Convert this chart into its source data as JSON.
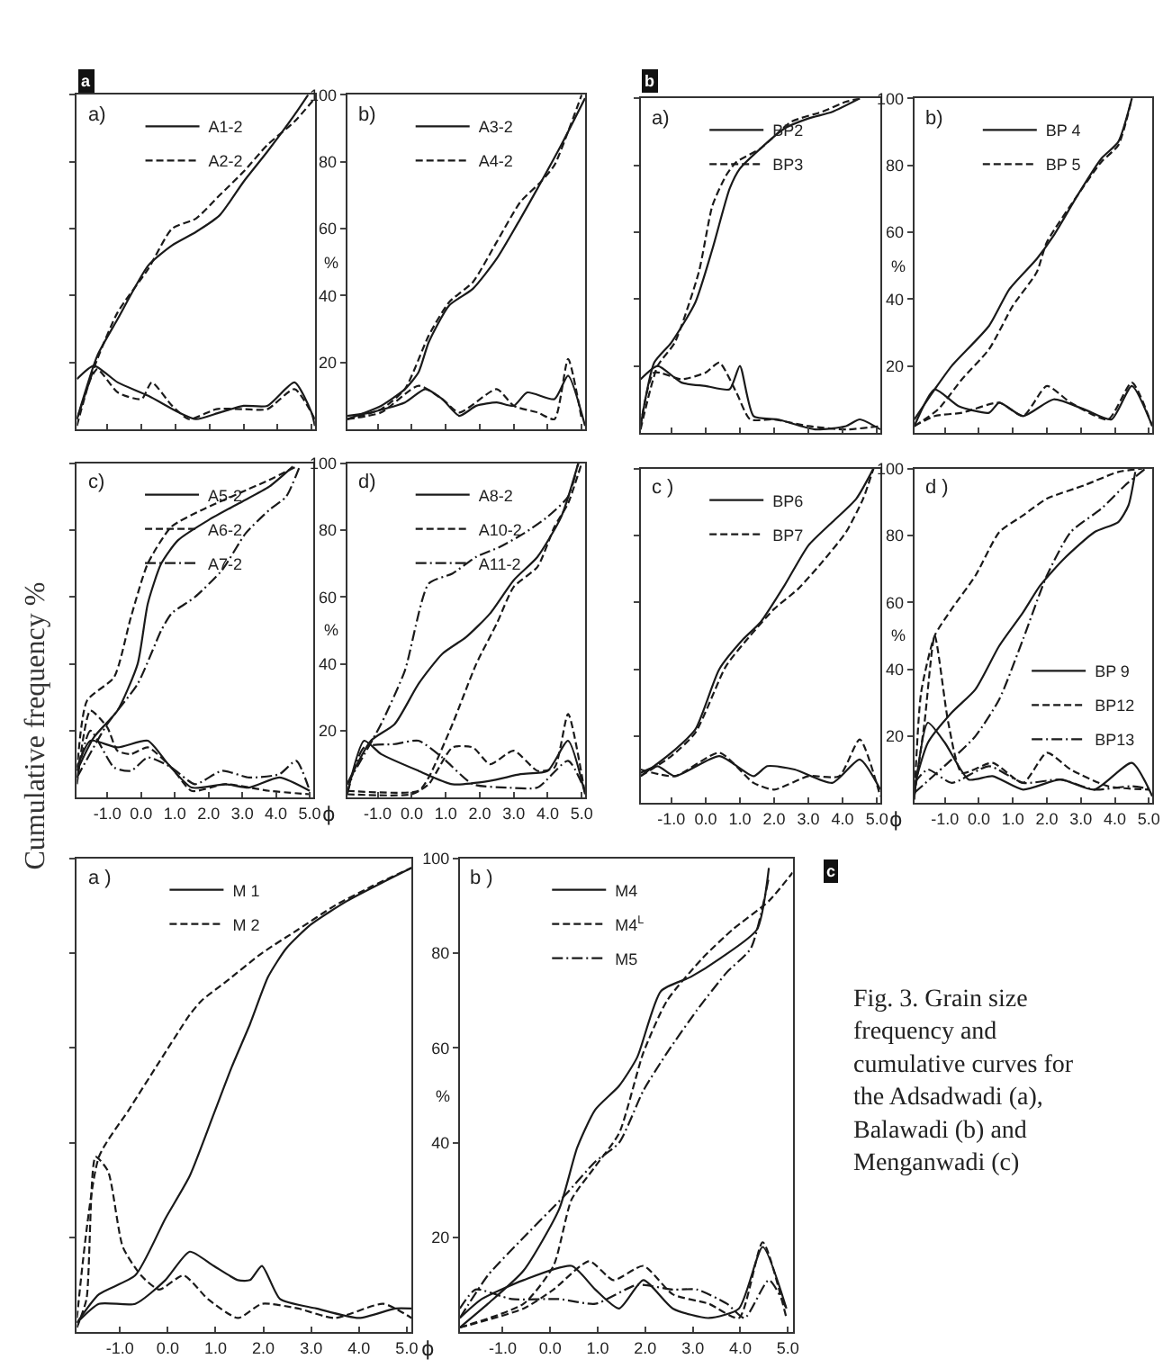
{
  "chart_data": [
    {
      "type": "line",
      "title": "a)",
      "legend": "top",
      "tick_labels": false,
      "grid": false,
      "annotations": [
        "a"
      ],
      "xlim": [
        -1.9,
        5.1
      ],
      "ylim": [
        0,
        100
      ],
      "xticks": [
        {
          "value": -1,
          "label": null
        },
        {
          "value": 0,
          "label": null
        },
        {
          "value": 1,
          "label": null
        },
        {
          "value": 2,
          "label": null
        },
        {
          "value": 3,
          "label": null
        },
        {
          "value": 4,
          "label": null
        },
        {
          "value": 5,
          "label": null
        }
      ],
      "yticks": [
        20,
        40,
        60,
        80,
        100
      ],
      "series": [
        {
          "name": "A1-2",
          "line_style": "solid",
          "color": "#1a1a1a",
          "x": [
            -1.9,
            -1.3,
            -0.7,
            0.2,
            0.9,
            1.6,
            2.3,
            3.0,
            3.7,
            4.5,
            4.9
          ],
          "values": [
            3,
            22,
            33,
            49,
            55,
            59,
            64,
            74,
            83,
            94,
            100
          ]
        },
        {
          "name": "A2-2",
          "line_style": "dashed",
          "color": "#1a1a1a",
          "x": [
            -1.9,
            -1.3,
            -0.7,
            0.2,
            0.9,
            1.6,
            2.3,
            3.0,
            3.7,
            4.5,
            5.1
          ],
          "values": [
            3,
            21,
            35,
            48,
            60,
            63,
            70,
            77,
            85,
            92,
            99
          ]
        },
        {
          "line_style": "solid",
          "color": "#1a1a1a",
          "x": [
            -1.9,
            -1.4,
            -0.7,
            0.2,
            1.1,
            1.6,
            2.3,
            3.0,
            3.7,
            4.5,
            5.0,
            5.1
          ],
          "values": [
            15,
            19,
            14,
            10,
            5,
            3,
            5,
            7,
            7,
            14,
            5,
            1
          ]
        },
        {
          "line_style": "dashed",
          "color": "#1a1a1a",
          "x": [
            -1.9,
            -1.5,
            -1.3,
            -0.7,
            0.0,
            0.3,
            0.9,
            1.4,
            2.2,
            3.0,
            3.7,
            4.5,
            5.1
          ],
          "values": [
            1,
            15,
            18,
            11,
            9,
            14,
            7,
            3,
            6,
            6,
            6,
            12,
            3
          ]
        }
      ]
    },
    {
      "type": "line",
      "title": "b)",
      "legend": "top",
      "tick_labels": "y",
      "grid": false,
      "ylabel": "%",
      "xlim": [
        -1.9,
        5.1
      ],
      "ylim": [
        0,
        100
      ],
      "xticks": [
        {
          "value": -1,
          "label": null
        },
        {
          "value": 0,
          "label": null
        },
        {
          "value": 1,
          "label": null
        },
        {
          "value": 2,
          "label": null
        },
        {
          "value": 3,
          "label": null
        },
        {
          "value": 4,
          "label": null
        },
        {
          "value": 5,
          "label": null
        }
      ],
      "yticks": [
        20,
        40,
        60,
        80,
        100
      ],
      "series": [
        {
          "name": "A3-2",
          "line_style": "solid",
          "color": "#1a1a1a",
          "x": [
            -1.9,
            -0.9,
            -0.2,
            0.2,
            0.5,
            1.1,
            1.8,
            2.5,
            3.2,
            3.7,
            4.4,
            5.1
          ],
          "values": [
            3,
            7,
            12,
            17,
            26,
            37,
            42,
            51,
            63,
            72,
            85,
            99
          ]
        },
        {
          "name": "A4-2",
          "line_style": "dashed",
          "color": "#1a1a1a",
          "x": [
            -1.9,
            -0.9,
            -0.2,
            0.5,
            1.1,
            1.8,
            2.5,
            3.2,
            3.8,
            4.2,
            4.6,
            5.0
          ],
          "values": [
            3,
            6,
            12,
            28,
            38,
            44,
            56,
            68,
            74,
            79,
            89,
            100
          ]
        },
        {
          "line_style": "solid",
          "color": "#1a1a1a",
          "x": [
            -1.9,
            -1.2,
            -0.2,
            0.4,
            0.9,
            1.4,
            1.9,
            2.5,
            3.0,
            3.4,
            4.2,
            4.6,
            5.1
          ],
          "values": [
            4,
            5,
            8,
            12,
            9,
            4,
            7,
            8,
            7,
            11,
            9,
            16,
            1
          ]
        },
        {
          "line_style": "dashed",
          "color": "#1a1a1a",
          "x": [
            -1.9,
            -0.9,
            0.2,
            0.9,
            1.4,
            2.5,
            3.0,
            3.7,
            4.2,
            4.6,
            5.0
          ],
          "values": [
            3,
            5,
            13,
            9,
            5,
            12,
            7,
            5,
            3,
            21,
            3
          ]
        }
      ]
    },
    {
      "type": "line",
      "title": "c)",
      "legend": "top",
      "tick_labels": "x",
      "grid": false,
      "ylabel": "Cumulative frequency %",
      "xlabel": "ϕ",
      "xlim": [
        -1.9,
        5.1
      ],
      "ylim": [
        0,
        100
      ],
      "xticks": [
        {
          "value": -1,
          "label": "-1.0"
        },
        {
          "value": 0,
          "label": "0.0"
        },
        {
          "value": 1,
          "label": "1.0"
        },
        {
          "value": 2,
          "label": "2.0"
        },
        {
          "value": 3,
          "label": "3.0"
        },
        {
          "value": 4,
          "label": "4.0"
        },
        {
          "value": 5,
          "label": "5.0"
        }
      ],
      "yticks": [
        20,
        40,
        60,
        80,
        100
      ],
      "series": [
        {
          "name": "A5-2",
          "line_style": "solid",
          "color": "#1a1a1a",
          "x": [
            -1.9,
            -1.4,
            -0.7,
            -0.1,
            0.2,
            0.6,
            1.1,
            2.0,
            2.9,
            3.8,
            4.5
          ],
          "values": [
            8,
            18,
            26,
            40,
            58,
            70,
            77,
            83,
            88,
            93,
            99
          ]
        },
        {
          "name": "A6-2",
          "line_style": "dashed",
          "color": "#1a1a1a",
          "x": [
            -1.9,
            -1.6,
            -0.8,
            -0.3,
            0.2,
            0.9,
            1.8,
            2.9,
            3.8,
            4.6
          ],
          "values": [
            8,
            29,
            36,
            54,
            70,
            81,
            86,
            91,
            95,
            99
          ]
        },
        {
          "name": "A7-2",
          "line_style": "dashdot",
          "color": "#1a1a1a",
          "x": [
            -1.9,
            -1.0,
            -0.1,
            0.6,
            0.9,
            1.6,
            2.4,
            3.1,
            3.8,
            4.3,
            4.7
          ],
          "values": [
            6,
            22,
            34,
            50,
            55,
            60,
            68,
            79,
            86,
            90,
            99
          ]
        },
        {
          "line_style": "solid",
          "color": "#1a1a1a",
          "x": [
            -1.9,
            -1.5,
            -0.7,
            0.2,
            0.8,
            1.5,
            2.5,
            3.2,
            4.1,
            5.0
          ],
          "values": [
            9,
            17,
            15,
            17,
            10,
            3,
            4,
            3,
            6,
            2
          ]
        },
        {
          "line_style": "dashed",
          "color": "#1a1a1a",
          "x": [
            -1.9,
            -1.5,
            -1.0,
            -0.7,
            -0.3,
            0.2,
            0.9,
            1.5,
            2.5,
            3.8,
            5.0
          ],
          "values": [
            4,
            26,
            21,
            14,
            13,
            15,
            9,
            2,
            4,
            2,
            1
          ]
        },
        {
          "line_style": "dashdot",
          "color": "#1a1a1a",
          "x": [
            -1.9,
            -1.5,
            -0.8,
            -0.3,
            0.2,
            0.9,
            1.6,
            2.4,
            3.2,
            4.1,
            4.6,
            5.0
          ],
          "values": [
            6,
            20,
            9,
            8,
            12,
            9,
            4,
            8,
            6,
            7,
            11,
            2
          ]
        }
      ]
    },
    {
      "type": "line",
      "title": "d)",
      "legend": "top",
      "grid": false,
      "ylabel": "%",
      "xlim": [
        -1.9,
        5.1
      ],
      "ylim": [
        0,
        100
      ],
      "xticks": [
        {
          "value": -1,
          "label": "-1.0"
        },
        {
          "value": 0,
          "label": "0.0"
        },
        {
          "value": 1,
          "label": "1.0"
        },
        {
          "value": 2,
          "label": "2.0"
        },
        {
          "value": 3,
          "label": "3.0"
        },
        {
          "value": 4,
          "label": "4.0"
        },
        {
          "value": 5,
          "label": "5.0"
        }
      ],
      "yticks": [
        20,
        40,
        60,
        80,
        100
      ],
      "series": [
        {
          "name": "A8-2",
          "line_style": "solid",
          "color": "#1a1a1a",
          "x": [
            -1.9,
            -1.2,
            -0.5,
            0.2,
            0.9,
            1.6,
            2.3,
            3.0,
            3.7,
            4.4,
            4.9
          ],
          "values": [
            4,
            17,
            22,
            34,
            43,
            48,
            55,
            65,
            72,
            84,
            100
          ]
        },
        {
          "name": "A10-2",
          "line_style": "dashed",
          "color": "#1a1a1a",
          "x": [
            -1.9,
            0.2,
            0.5,
            1.2,
            1.9,
            2.5,
            3.0,
            3.7,
            4.2,
            4.6,
            5.0
          ],
          "values": [
            2,
            2,
            6,
            22,
            40,
            52,
            63,
            69,
            81,
            88,
            100
          ]
        },
        {
          "name": "A11-2",
          "line_style": "dashdot",
          "color": "#1a1a1a",
          "x": [
            -1.9,
            -0.9,
            -0.2,
            0.5,
            1.2,
            1.9,
            2.6,
            3.3,
            4.0,
            4.6,
            4.9
          ],
          "values": [
            4,
            22,
            38,
            64,
            67,
            72,
            75,
            79,
            84,
            90,
            100
          ]
        },
        {
          "line_style": "solid",
          "color": "#1a1a1a",
          "x": [
            -1.9,
            -1.4,
            -0.9,
            0.2,
            1.2,
            2.3,
            3.2,
            4.0,
            4.6,
            5.1
          ],
          "values": [
            1,
            17,
            13,
            8,
            4,
            5,
            7,
            8,
            17,
            1
          ]
        },
        {
          "line_style": "dashed",
          "color": "#1a1a1a",
          "x": [
            -1.9,
            0.0,
            0.5,
            1.2,
            1.8,
            2.3,
            3.0,
            3.7,
            4.2,
            4.6,
            5.1
          ],
          "values": [
            1,
            1,
            4,
            15,
            15,
            10,
            14,
            8,
            9,
            25,
            1
          ]
        },
        {
          "line_style": "dashdot",
          "color": "#1a1a1a",
          "x": [
            -1.9,
            -1.4,
            -0.5,
            0.2,
            0.9,
            1.8,
            2.8,
            3.7,
            4.6,
            5.1
          ],
          "values": [
            1,
            15,
            16,
            17,
            12,
            4,
            3,
            3,
            11,
            2
          ]
        }
      ]
    },
    {
      "type": "line",
      "title": "a)",
      "legend": "top",
      "tick_labels": false,
      "grid": false,
      "annotations": [
        "b"
      ],
      "xlim": [
        -1.9,
        5.1
      ],
      "ylim": [
        0,
        100
      ],
      "xticks": [
        {
          "value": -1,
          "label": null
        },
        {
          "value": 0,
          "label": null
        },
        {
          "value": 1,
          "label": null
        },
        {
          "value": 2,
          "label": null
        },
        {
          "value": 3,
          "label": null
        },
        {
          "value": 4,
          "label": null
        },
        {
          "value": 5,
          "label": null
        }
      ],
      "yticks": [
        20,
        40,
        60,
        80,
        100
      ],
      "series": [
        {
          "name": "BP2",
          "line_style": "solid",
          "color": "#1a1a1a",
          "x": [
            -1.9,
            -1.5,
            -1.0,
            -0.3,
            0.2,
            0.7,
            1.0,
            1.6,
            2.3,
            3.0,
            3.7,
            4.5
          ],
          "values": [
            2,
            21,
            27,
            39,
            55,
            73,
            79,
            85,
            91,
            94,
            96,
            100
          ]
        },
        {
          "name": "BP3",
          "line_style": "dashed",
          "color": "#1a1a1a",
          "x": [
            -1.9,
            -1.4,
            -0.9,
            -0.2,
            0.2,
            0.6,
            0.9,
            1.6,
            2.5,
            3.4,
            4.1,
            4.5
          ],
          "values": [
            1,
            20,
            27,
            48,
            68,
            77,
            81,
            85,
            93,
            96,
            99,
            100
          ]
        },
        {
          "line_style": "solid",
          "color": "#1a1a1a",
          "x": [
            -1.9,
            -1.4,
            -0.7,
            0.0,
            0.7,
            1.0,
            1.4,
            2.1,
            3.2,
            4.1,
            4.5,
            5.1
          ],
          "values": [
            16,
            20,
            15,
            14,
            13,
            20,
            5,
            4,
            1,
            2,
            4,
            1
          ]
        },
        {
          "line_style": "dashed",
          "color": "#1a1a1a",
          "x": [
            -1.9,
            -1.5,
            -0.7,
            0.0,
            0.4,
            0.9,
            1.3,
            2.0,
            3.0,
            4.1,
            5.1
          ],
          "values": [
            2,
            18,
            16,
            18,
            21,
            12,
            4,
            4,
            2,
            1,
            2
          ]
        }
      ]
    },
    {
      "type": "line",
      "title": "b)",
      "legend": "top",
      "tick_labels": "y",
      "grid": false,
      "ylabel": "%",
      "xlim": [
        -1.9,
        5.1
      ],
      "ylim": [
        0,
        100
      ],
      "xticks": [
        {
          "value": -1,
          "label": null
        },
        {
          "value": 0,
          "label": null
        },
        {
          "value": 1,
          "label": null
        },
        {
          "value": 2,
          "label": null
        },
        {
          "value": 3,
          "label": null
        },
        {
          "value": 4,
          "label": null
        },
        {
          "value": 5,
          "label": null
        }
      ],
      "yticks": [
        20,
        40,
        60,
        80,
        100
      ],
      "series": [
        {
          "name": "BP 4",
          "line_style": "solid",
          "color": "#1a1a1a",
          "x": [
            -1.9,
            -1.3,
            -0.8,
            0.3,
            0.9,
            1.7,
            2.2,
            2.9,
            3.6,
            4.1,
            4.5
          ],
          "values": [
            4,
            13,
            20,
            32,
            43,
            52,
            59,
            71,
            82,
            87,
            100
          ]
        },
        {
          "name": "BP 5",
          "line_style": "dashed",
          "color": "#1a1a1a",
          "x": [
            -1.9,
            -1.2,
            -0.5,
            0.3,
            1.0,
            1.7,
            2.0,
            2.9,
            3.6,
            4.1,
            4.5
          ],
          "values": [
            2,
            7,
            16,
            25,
            38,
            48,
            57,
            71,
            81,
            86,
            100
          ]
        },
        {
          "line_style": "solid",
          "color": "#1a1a1a",
          "x": [
            -1.9,
            -1.3,
            -0.6,
            0.3,
            0.6,
            1.3,
            2.2,
            3.1,
            3.9,
            4.5,
            5.1
          ],
          "values": [
            2,
            13,
            8,
            6,
            9,
            5,
            10,
            7,
            4,
            14,
            2
          ]
        },
        {
          "line_style": "dashed",
          "color": "#1a1a1a",
          "x": [
            -1.9,
            -1.3,
            -0.5,
            0.6,
            1.3,
            2.0,
            2.7,
            3.8,
            4.5,
            5.1
          ],
          "values": [
            2,
            5,
            6,
            9,
            5,
            14,
            9,
            4,
            15,
            2
          ]
        }
      ]
    },
    {
      "type": "line",
      "title": "c )",
      "legend": "top",
      "tick_labels": "x",
      "grid": false,
      "xlabel": "ϕ",
      "xlim": [
        -1.9,
        5.1
      ],
      "ylim": [
        0,
        100
      ],
      "xticks": [
        {
          "value": -1,
          "label": "-1.0"
        },
        {
          "value": 0,
          "label": "0.0"
        },
        {
          "value": 1,
          "label": "1.0"
        },
        {
          "value": 2,
          "label": "2.0"
        },
        {
          "value": 3,
          "label": "3.0"
        },
        {
          "value": 4,
          "label": "4.0"
        },
        {
          "value": 5,
          "label": "5.0"
        }
      ],
      "yticks": [
        20,
        40,
        60,
        80,
        100
      ],
      "series": [
        {
          "name": "BP6",
          "line_style": "solid",
          "color": "#1a1a1a",
          "x": [
            -1.9,
            -1.0,
            -0.3,
            0.4,
            1.1,
            1.6,
            2.3,
            3.0,
            3.7,
            4.4,
            4.9
          ],
          "values": [
            8,
            15,
            22,
            40,
            49,
            54,
            65,
            77,
            84,
            91,
            100
          ]
        },
        {
          "name": "BP7",
          "line_style": "dashed",
          "color": "#1a1a1a",
          "x": [
            -1.9,
            -1.0,
            -0.3,
            0.6,
            1.3,
            2.0,
            2.7,
            3.4,
            4.1,
            4.6,
            4.9
          ],
          "values": [
            8,
            14,
            21,
            41,
            50,
            58,
            64,
            72,
            81,
            91,
            100
          ]
        },
        {
          "line_style": "solid",
          "color": "#1a1a1a",
          "x": [
            -1.9,
            -1.4,
            -0.9,
            0.4,
            1.4,
            1.8,
            2.6,
            3.7,
            4.5,
            5.1
          ],
          "values": [
            9,
            11,
            8,
            14,
            8,
            11,
            10,
            6,
            13,
            4
          ]
        },
        {
          "line_style": "dashed",
          "color": "#1a1a1a",
          "x": [
            -1.9,
            -0.9,
            0.4,
            1.4,
            2.0,
            3.0,
            3.9,
            4.5,
            5.1
          ],
          "values": [
            10,
            8,
            15,
            6,
            4,
            8,
            8,
            19,
            2
          ]
        }
      ]
    },
    {
      "type": "line",
      "title": "d )",
      "legend": "right",
      "grid": false,
      "ylabel": "%",
      "xlim": [
        -1.9,
        5.1
      ],
      "ylim": [
        0,
        100
      ],
      "xticks": [
        {
          "value": -1,
          "label": "-1.0"
        },
        {
          "value": 0,
          "label": "0.0"
        },
        {
          "value": 1,
          "label": "1.0"
        },
        {
          "value": 2,
          "label": "2.0"
        },
        {
          "value": 3,
          "label": "3.0"
        },
        {
          "value": 4,
          "label": "4.0"
        },
        {
          "value": 5,
          "label": "5.0"
        }
      ],
      "yticks": [
        20,
        40,
        60,
        80,
        100
      ],
      "series": [
        {
          "name": "BP 9",
          "line_style": "solid",
          "color": "#1a1a1a",
          "x": [
            -1.9,
            -1.5,
            -0.8,
            -0.1,
            0.6,
            1.3,
            1.8,
            2.5,
            3.4,
            4.1,
            4.4,
            4.6
          ],
          "values": [
            5,
            18,
            27,
            34,
            47,
            57,
            65,
            73,
            81,
            84,
            89,
            99
          ]
        },
        {
          "name": "BP12",
          "line_style": "dashed",
          "color": "#1a1a1a",
          "x": [
            -1.9,
            -1.7,
            -1.3,
            -0.8,
            -0.1,
            0.6,
            1.3,
            2.0,
            3.1,
            4.1,
            4.8
          ],
          "values": [
            1,
            33,
            50,
            58,
            68,
            81,
            86,
            91,
            95,
            99,
            100
          ]
        },
        {
          "name": "BP13",
          "line_style": "dashdot",
          "color": "#1a1a1a",
          "x": [
            -1.9,
            -0.8,
            -0.1,
            0.6,
            1.3,
            2.0,
            2.7,
            3.6,
            4.3,
            4.9
          ],
          "values": [
            3,
            13,
            20,
            31,
            49,
            68,
            81,
            88,
            95,
            100
          ]
        },
        {
          "line_style": "solid",
          "color": "#1a1a1a",
          "x": [
            -1.9,
            -1.5,
            -1.0,
            -0.3,
            0.4,
            1.3,
            2.4,
            3.4,
            4.5,
            5.1
          ],
          "values": [
            2,
            24,
            18,
            7,
            8,
            4,
            7,
            4,
            12,
            2
          ]
        },
        {
          "line_style": "dashed",
          "color": "#1a1a1a",
          "x": [
            -1.9,
            -1.6,
            -1.3,
            -0.9,
            -0.5,
            0.4,
            1.3,
            2.0,
            2.7,
            3.8,
            5.0
          ],
          "values": [
            2,
            24,
            50,
            24,
            9,
            12,
            6,
            15,
            10,
            5,
            4
          ]
        },
        {
          "line_style": "dashdot",
          "color": "#1a1a1a",
          "x": [
            -1.9,
            -1.5,
            -0.8,
            0.3,
            1.3,
            2.4,
            3.4,
            4.5,
            5.1
          ],
          "values": [
            6,
            10,
            6,
            11,
            6,
            7,
            4,
            5,
            4
          ]
        }
      ]
    },
    {
      "type": "line",
      "title": "a )",
      "legend": "top",
      "tick_labels": "x",
      "grid": false,
      "xlabel": "ϕ",
      "annotations": [
        "c"
      ],
      "xlim": [
        -1.9,
        5.1
      ],
      "ylim": [
        0,
        100
      ],
      "xticks": [
        {
          "value": -1,
          "label": "-1.0"
        },
        {
          "value": 0,
          "label": "0.0"
        },
        {
          "value": 1,
          "label": "1.0"
        },
        {
          "value": 2,
          "label": "2.0"
        },
        {
          "value": 3,
          "label": "3.0"
        },
        {
          "value": 4,
          "label": "4.0"
        },
        {
          "value": 5,
          "label": "5.0"
        }
      ],
      "yticks": [
        20,
        40,
        60,
        80,
        100
      ],
      "series": [
        {
          "name": "M 1",
          "line_style": "solid",
          "color": "#1a1a1a",
          "x": [
            -1.9,
            -1.44,
            -0.68,
            -0.05,
            0.46,
            0.96,
            1.34,
            1.72,
            2.1,
            2.48,
            2.99,
            3.75,
            4.51,
            5.1
          ],
          "values": [
            2,
            8,
            12,
            24,
            33,
            46,
            56,
            65,
            75,
            81,
            86,
            91,
            95,
            98
          ]
        },
        {
          "name": "M 2",
          "line_style": "dashed",
          "color": "#1a1a1a",
          "x": [
            -1.9,
            -1.44,
            -0.81,
            -0.18,
            0.46,
            0.71,
            1.22,
            1.97,
            2.73,
            3.49,
            4.25,
            5.1
          ],
          "values": [
            3,
            37,
            47,
            57,
            67,
            70,
            74,
            80,
            85,
            90,
            94,
            98
          ]
        },
        {
          "line_style": "solid",
          "color": "#1a1a1a",
          "x": [
            -1.9,
            -1.44,
            -0.68,
            -0.05,
            0.46,
            0.96,
            1.47,
            1.72,
            1.97,
            2.35,
            3.11,
            4.0,
            4.76,
            5.1
          ],
          "values": [
            2,
            6,
            6,
            11,
            17,
            14,
            11,
            11,
            14,
            7,
            5,
            3,
            5,
            5
          ]
        },
        {
          "line_style": "dashed",
          "color": "#1a1a1a",
          "x": [
            -1.9,
            -1.7,
            -1.51,
            -1.25,
            -0.94,
            -0.56,
            -0.18,
            0.33,
            0.84,
            1.47,
            1.97,
            2.73,
            3.49,
            4.51,
            5.1
          ],
          "values": [
            1,
            7,
            37,
            34,
            18,
            12,
            9,
            12,
            7,
            3,
            6,
            5,
            3,
            6,
            3
          ]
        }
      ]
    },
    {
      "type": "line",
      "title": "b )",
      "legend": "top",
      "grid": false,
      "ylabel": "%",
      "annotations": [
        "Fig. 3. Grain size frequency and cumulative curves for the Adsadwadi (a), Balawadi (b) and Menganwadi (c)"
      ],
      "xlim": [
        -1.9,
        5.1
      ],
      "ylim": [
        0,
        100
      ],
      "xticks": [
        {
          "value": -1,
          "label": "-1.0"
        },
        {
          "value": 0,
          "label": "0.0"
        },
        {
          "value": 1,
          "label": "1.0"
        },
        {
          "value": 2,
          "label": "2.0"
        },
        {
          "value": 3,
          "label": "3.0"
        },
        {
          "value": 4,
          "label": "4.0"
        },
        {
          "value": 5,
          "label": "5.0"
        }
      ],
      "yticks": [
        20,
        40,
        60,
        80,
        100
      ],
      "series": [
        {
          "name": "M4",
          "line_style": "solid",
          "color": "#1a1a1a",
          "x": [
            -1.9,
            -1.31,
            -0.56,
            0.19,
            0.57,
            0.95,
            1.45,
            1.83,
            2.33,
            2.96,
            3.59,
            4.35,
            4.6
          ],
          "values": [
            1,
            6,
            13,
            26,
            39,
            47,
            52,
            58,
            72,
            75,
            79,
            85,
            98
          ]
        },
        {
          "name": "M4$^{L}$",
          "line_style": "dashed",
          "color": "#1a1a1a",
          "x": [
            -1.9,
            -0.56,
            0.07,
            0.45,
            0.95,
            1.45,
            1.96,
            2.46,
            3.21,
            3.84,
            4.6,
            5.1
          ],
          "values": [
            1,
            6,
            14,
            28,
            35,
            42,
            59,
            70,
            79,
            85,
            91,
            97
          ]
        },
        {
          "name": "M5",
          "line_style": "dashdot",
          "color": "#1a1a1a",
          "x": [
            -1.9,
            -1.31,
            -0.56,
            0.32,
            0.95,
            1.45,
            1.96,
            2.46,
            3.09,
            3.72,
            4.22,
            4.6
          ],
          "values": [
            3,
            12,
            20,
            29,
            36,
            40,
            51,
            59,
            68,
            76,
            81,
            96
          ]
        },
        {
          "line_style": "solid",
          "color": "#1a1a1a",
          "x": [
            -1.9,
            -1.44,
            -0.56,
            0.45,
            0.95,
            1.45,
            1.96,
            2.58,
            3.34,
            3.97,
            4.47,
            4.97
          ],
          "values": [
            3,
            7,
            11,
            14,
            9,
            5,
            11,
            5,
            3,
            5,
            18,
            5
          ]
        },
        {
          "line_style": "dashed",
          "color": "#1a1a1a",
          "x": [
            -1.9,
            -0.56,
            0.07,
            0.82,
            1.33,
            1.96,
            2.58,
            3.34,
            3.97,
            4.47,
            4.97
          ],
          "values": [
            1,
            5,
            9,
            15,
            11,
            14,
            8,
            6,
            3,
            19,
            3
          ]
        },
        {
          "line_style": "dashdot",
          "color": "#1a1a1a",
          "x": [
            -1.9,
            -1.57,
            -0.81,
            0.19,
            0.95,
            1.83,
            2.58,
            3.09,
            3.72,
            4.09,
            4.6,
            4.97
          ],
          "values": [
            5,
            9,
            7,
            7,
            6,
            10,
            9,
            9,
            6,
            3,
            11,
            5
          ]
        }
      ]
    }
  ]
}
